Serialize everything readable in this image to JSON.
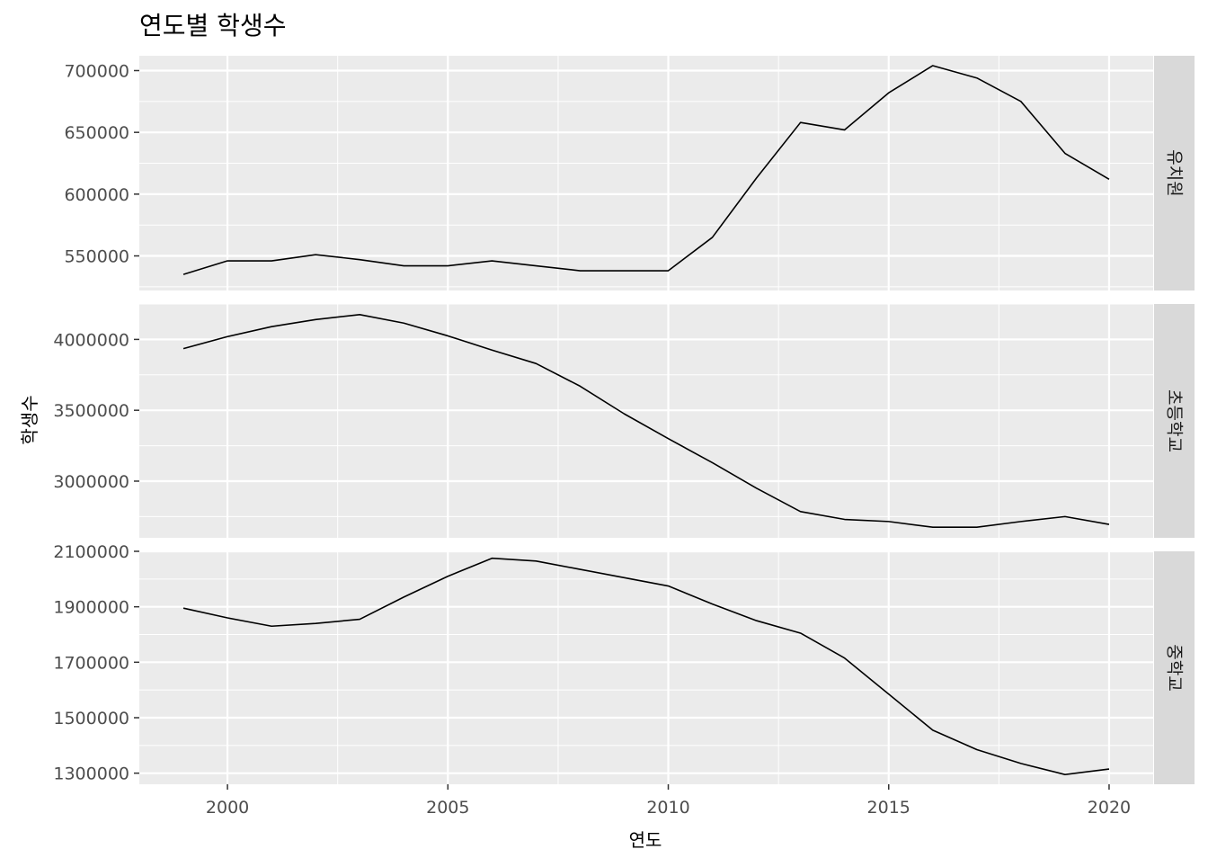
{
  "chart_data": {
    "type": "line",
    "title": "연도별 학생수",
    "xlabel": "연도",
    "ylabel": "학생수",
    "x": [
      1999,
      2000,
      2001,
      2002,
      2003,
      2004,
      2005,
      2006,
      2007,
      2008,
      2009,
      2010,
      2011,
      2012,
      2013,
      2014,
      2015,
      2016,
      2017,
      2018,
      2019,
      2020
    ],
    "xlim": [
      1998,
      2021
    ],
    "x_ticks": [
      2000,
      2005,
      2010,
      2015,
      2020
    ],
    "x_tick_labels": [
      "2000",
      "2005",
      "2010",
      "2015",
      "2020"
    ],
    "line_color": "#000000",
    "panel_background": "#ebebeb",
    "strip_background": "#d9d9d9",
    "grid_color": "#ffffff",
    "panels": [
      {
        "strip": "유치원",
        "ylim": [
          522000,
          712000
        ],
        "y_ticks": [
          550000,
          600000,
          650000,
          700000
        ],
        "y_tick_labels": [
          "550000",
          "600000",
          "650000",
          "700000"
        ],
        "values": [
          535000,
          546000,
          546000,
          551000,
          547000,
          542000,
          542000,
          546000,
          542000,
          538000,
          538000,
          538000,
          565000,
          613000,
          658000,
          652000,
          682000,
          704000,
          694000,
          675000,
          633000,
          612000
        ]
      },
      {
        "strip": "초등학교",
        "ylim": [
          2600000,
          4250000
        ],
        "y_ticks": [
          3000000,
          3500000,
          4000000
        ],
        "y_tick_labels": [
          "3000000",
          "3500000",
          "4000000"
        ],
        "values": [
          3935000,
          4020000,
          4090000,
          4140000,
          4175000,
          4115000,
          4025000,
          3925000,
          3830000,
          3670000,
          3475000,
          3300000,
          3130000,
          2950000,
          2785000,
          2730000,
          2715000,
          2675000,
          2675000,
          2715000,
          2750000,
          2695000
        ]
      },
      {
        "strip": "중학교",
        "ylim": [
          1260000,
          2100000
        ],
        "y_ticks": [
          1300000,
          1500000,
          1700000,
          1900000,
          2100000
        ],
        "y_tick_labels": [
          "1300000",
          "1500000",
          "1700000",
          "1900000",
          "2100000"
        ],
        "values": [
          1895000,
          1860000,
          1830000,
          1840000,
          1855000,
          1935000,
          2010000,
          2075000,
          2065000,
          2035000,
          2005000,
          1975000,
          1910000,
          1850000,
          1805000,
          1715000,
          1585000,
          1455000,
          1385000,
          1335000,
          1295000,
          1315000
        ]
      }
    ]
  }
}
